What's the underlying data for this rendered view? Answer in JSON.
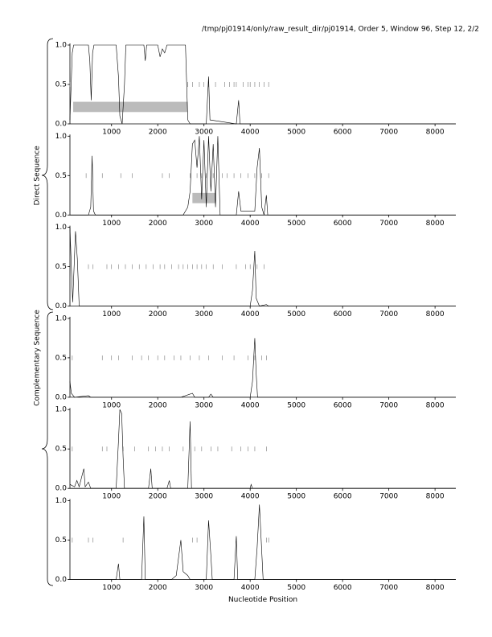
{
  "chart_data": [
    {
      "type": "line",
      "title": "/tmp/pj01914/only/raw_result_dir/pj01914, Order 5, Window 96, Step 12, 2/2",
      "color": "#000000",
      "xlim": [
        100,
        8450
      ],
      "ylim": [
        0,
        1
      ],
      "xticks": [
        1000,
        2000,
        3000,
        4000,
        5000,
        6000,
        7000,
        8000
      ],
      "yticks": [
        {
          "value": 0,
          "label": "0.0"
        },
        {
          "value": 0.5,
          "label": "0.5"
        },
        {
          "value": 1,
          "label": "1.0"
        }
      ],
      "x": [
        100,
        150,
        180,
        500,
        530,
        560,
        590,
        620,
        1100,
        1150,
        1180,
        1230,
        1280,
        1310,
        1700,
        1730,
        1760,
        2000,
        2050,
        2100,
        2150,
        2200,
        2600,
        2650,
        2700,
        3050,
        3100,
        3130,
        3700,
        3750,
        3780,
        4000,
        8450
      ],
      "values": [
        0.05,
        0.9,
        1,
        1,
        0.8,
        0.3,
        0.9,
        1,
        1,
        0.6,
        0.1,
        0,
        0.5,
        1,
        1,
        0.8,
        1,
        1,
        0.85,
        0.95,
        0.9,
        1,
        1,
        0.05,
        0,
        0,
        0.6,
        0.05,
        0,
        0.3,
        0,
        0,
        0
      ],
      "regions": [
        [
          170,
          2650
        ]
      ],
      "markers": [
        100,
        2650,
        2750,
        2900,
        3000,
        3100,
        3250,
        3450,
        3550,
        3650,
        3700,
        3850,
        3950,
        4000,
        4100,
        4200,
        4300,
        4400
      ]
    },
    {
      "type": "line",
      "group_label": "Direct Sequence",
      "color": "#000000",
      "xlim": [
        100,
        8450
      ],
      "ylim": [
        0,
        1
      ],
      "xticks": [
        1000,
        2000,
        3000,
        4000,
        5000,
        6000,
        7000,
        8000
      ],
      "yticks": [
        {
          "value": 0,
          "label": "0.0"
        },
        {
          "value": 0.5,
          "label": "0.5"
        },
        {
          "value": 1,
          "label": "1.0"
        }
      ],
      "x": [
        100,
        500,
        550,
        580,
        610,
        650,
        2550,
        2600,
        2650,
        2700,
        2750,
        2800,
        2850,
        2900,
        2950,
        3000,
        3050,
        3100,
        3150,
        3200,
        3250,
        3300,
        3350,
        3700,
        3750,
        3800,
        4100,
        4150,
        4200,
        4250,
        4300,
        4350,
        4380,
        8450
      ],
      "values": [
        0,
        0,
        0.1,
        0.75,
        0.05,
        0,
        0,
        0.05,
        0.1,
        0.3,
        0.9,
        0.95,
        0.6,
        1,
        0.2,
        0.95,
        0.1,
        1,
        0.3,
        0.9,
        0.1,
        1,
        0,
        0,
        0.3,
        0.05,
        0.05,
        0.6,
        0.85,
        0.1,
        0,
        0.25,
        0,
        0
      ],
      "regions": [
        [
          2750,
          3250
        ]
      ],
      "markers": [
        450,
        800,
        1200,
        1450,
        2100,
        2250,
        2700,
        2850,
        2950,
        3050,
        3200,
        3400,
        3500,
        3650,
        3800,
        3950,
        4100,
        4250,
        4400
      ]
    },
    {
      "type": "line",
      "color": "#000000",
      "xlim": [
        100,
        8450
      ],
      "ylim": [
        0,
        1
      ],
      "xticks": [
        1000,
        2000,
        3000,
        4000,
        5000,
        6000,
        7000,
        8000
      ],
      "yticks": [
        {
          "value": 0,
          "label": "0.0"
        },
        {
          "value": 0.5,
          "label": "0.5"
        },
        {
          "value": 1,
          "label": "1.0"
        }
      ],
      "x": [
        100,
        130,
        160,
        220,
        260,
        300,
        4000,
        4050,
        4100,
        4130,
        4200,
        4350,
        4400,
        8450
      ],
      "values": [
        1,
        0.5,
        0.05,
        0.95,
        0.6,
        0,
        0,
        0.2,
        0.7,
        0.1,
        0,
        0.02,
        0,
        0
      ],
      "regions": [],
      "markers": [
        500,
        600,
        900,
        1000,
        1150,
        1300,
        1450,
        1600,
        1750,
        1900,
        2050,
        2150,
        2300,
        2450,
        2550,
        2650,
        2750,
        2850,
        2950,
        3050,
        3200,
        3400,
        3700,
        3900,
        4000,
        4150,
        4300
      ]
    },
    {
      "type": "line",
      "group_label": "Complementary Sequence",
      "color": "#000000",
      "xlim": [
        100,
        8450
      ],
      "ylim": [
        0,
        1
      ],
      "xticks": [
        1000,
        2000,
        3000,
        4000,
        5000,
        6000,
        7000,
        8000
      ],
      "yticks": [
        {
          "value": 0,
          "label": "0.0"
        },
        {
          "value": 0.5,
          "label": "0.5"
        },
        {
          "value": 1,
          "label": "1.0"
        }
      ],
      "x": [
        100,
        130,
        200,
        500,
        550,
        2500,
        2750,
        2800,
        3100,
        3150,
        3200,
        4000,
        4050,
        4100,
        4130,
        4160,
        8450
      ],
      "values": [
        0.2,
        0.05,
        0,
        0.02,
        0,
        0,
        0.05,
        0,
        0,
        0.04,
        0,
        0,
        0.2,
        0.75,
        0.3,
        0,
        0
      ],
      "regions": [],
      "markers": [
        150,
        800,
        1000,
        1150,
        1450,
        1650,
        1800,
        2000,
        2150,
        2350,
        2500,
        2700,
        2900,
        3100,
        3400,
        3650,
        3950,
        4100,
        4250,
        4350
      ]
    },
    {
      "type": "line",
      "color": "#000000",
      "xlim": [
        100,
        8450
      ],
      "ylim": [
        0,
        1
      ],
      "xticks": [
        1000,
        2000,
        3000,
        4000,
        5000,
        6000,
        7000,
        8000
      ],
      "yticks": [
        {
          "value": 0,
          "label": "0.0"
        },
        {
          "value": 0.5,
          "label": "0.5"
        },
        {
          "value": 1,
          "label": "1.0"
        }
      ],
      "x": [
        100,
        200,
        250,
        300,
        400,
        430,
        500,
        550,
        1100,
        1150,
        1180,
        1220,
        1250,
        1280,
        1800,
        1850,
        1880,
        2200,
        2250,
        2280,
        2650,
        2700,
        2730,
        4000,
        4020,
        4050,
        8450
      ],
      "values": [
        0.05,
        0.02,
        0.1,
        0.02,
        0.25,
        0.02,
        0.08,
        0,
        0,
        0.6,
        1,
        0.95,
        0.4,
        0,
        0,
        0.25,
        0,
        0,
        0.1,
        0,
        0,
        0.85,
        0,
        0,
        0.05,
        0,
        0
      ],
      "regions": [],
      "markers": [
        150,
        800,
        900,
        1250,
        1500,
        1800,
        1950,
        2100,
        2250,
        2550,
        2800,
        2950,
        3150,
        3300,
        3600,
        3800,
        3950,
        4100,
        4350
      ]
    },
    {
      "type": "line",
      "xlabel": "Nucleotide Position",
      "color": "#000000",
      "xlim": [
        100,
        8450
      ],
      "ylim": [
        0,
        1
      ],
      "xticks": [
        1000,
        2000,
        3000,
        4000,
        5000,
        6000,
        7000,
        8000
      ],
      "yticks": [
        {
          "value": 0,
          "label": "0.0"
        },
        {
          "value": 0.5,
          "label": "0.5"
        },
        {
          "value": 1,
          "label": "1.0"
        }
      ],
      "x": [
        100,
        1100,
        1150,
        1180,
        1650,
        1700,
        1730,
        2300,
        2400,
        2500,
        2550,
        2650,
        2700,
        3050,
        3100,
        3150,
        3180,
        3650,
        3700,
        3730,
        4100,
        4150,
        4200,
        4230,
        4280,
        8450
      ],
      "values": [
        0,
        0,
        0.2,
        0,
        0,
        0.8,
        0,
        0,
        0.05,
        0.5,
        0.1,
        0.05,
        0,
        0,
        0.75,
        0.3,
        0,
        0,
        0.55,
        0,
        0,
        0.4,
        0.95,
        0.6,
        0,
        0
      ],
      "regions": [],
      "markers": [
        150,
        500,
        600,
        1250,
        2750,
        2850,
        3700,
        4350,
        4400
      ]
    }
  ]
}
